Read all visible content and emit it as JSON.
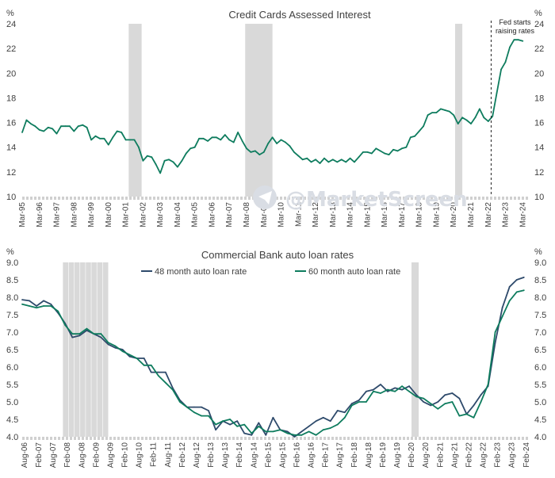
{
  "watermark": "@MarketScreen",
  "colors": {
    "series_a": "#2e4a6b",
    "series_b": "#0e7c5e",
    "recession": "#d9d9d9",
    "text": "#404040"
  },
  "chart_data": [
    {
      "type": "line",
      "title": "Credit Cards Assessed Interest",
      "y_unit_left": "%",
      "y_unit_right": "%",
      "ylim": [
        10,
        24
      ],
      "yticks": [
        10,
        12,
        14,
        16,
        18,
        20,
        22,
        24
      ],
      "x_tick_labels": [
        "Mar-95",
        "Mar-96",
        "Mar-97",
        "Mar-98",
        "Mar-99",
        "Mar-00",
        "Mar-01",
        "Mar-02",
        "Mar-03",
        "Mar-04",
        "Mar-05",
        "Mar-06",
        "Mar-07",
        "Mar-08",
        "Mar-09",
        "Mar-10",
        "Mar-11",
        "Mar-12",
        "Mar-13",
        "Mar-14",
        "Mar-15",
        "Mar-16",
        "Mar-17",
        "Mar-18",
        "Mar-19",
        "Mar-20",
        "Mar-21",
        "Mar-22",
        "Mar-23",
        "Mar-24"
      ],
      "xlim": [
        1995.0,
        2024.4
      ],
      "recessions": [
        [
          2001.17,
          2001.92
        ],
        [
          2007.92,
          2009.5
        ],
        [
          2020.08,
          2020.5
        ]
      ],
      "annotation": {
        "text_lines": [
          "Fed starts",
          "raising rates"
        ],
        "x": 2022.17
      },
      "series": [
        {
          "x": [
            1995.0,
            1995.25,
            1995.5,
            1995.75,
            1996.0,
            1996.25,
            1996.5,
            1996.75,
            1997.0,
            1997.25,
            1997.5,
            1997.75,
            1998.0,
            1998.25,
            1998.5,
            1998.75,
            1999.0,
            1999.25,
            1999.5,
            1999.75,
            2000.0,
            2000.25,
            2000.5,
            2000.75,
            2001.0,
            2001.25,
            2001.5,
            2001.75,
            2002.0,
            2002.25,
            2002.5,
            2002.75,
            2003.0,
            2003.25,
            2003.5,
            2003.75,
            2004.0,
            2004.25,
            2004.5,
            2004.75,
            2005.0,
            2005.25,
            2005.5,
            2005.75,
            2006.0,
            2006.25,
            2006.5,
            2006.75,
            2007.0,
            2007.25,
            2007.5,
            2007.75,
            2008.0,
            2008.25,
            2008.5,
            2008.75,
            2009.0,
            2009.25,
            2009.5,
            2009.75,
            2010.0,
            2010.25,
            2010.5,
            2010.75,
            2011.0,
            2011.25,
            2011.5,
            2011.75,
            2012.0,
            2012.25,
            2012.5,
            2012.75,
            2013.0,
            2013.25,
            2013.5,
            2013.75,
            2014.0,
            2014.25,
            2014.5,
            2014.75,
            2015.0,
            2015.25,
            2015.5,
            2015.75,
            2016.0,
            2016.25,
            2016.5,
            2016.75,
            2017.0,
            2017.25,
            2017.5,
            2017.75,
            2018.0,
            2018.25,
            2018.5,
            2018.75,
            2019.0,
            2019.25,
            2019.5,
            2019.75,
            2020.0,
            2020.25,
            2020.5,
            2020.75,
            2021.0,
            2021.25,
            2021.5,
            2021.75,
            2022.0,
            2022.25,
            2022.5,
            2022.75,
            2023.0,
            2023.25,
            2023.5,
            2023.75,
            2024.0
          ],
          "values": [
            15.2,
            16.2,
            15.9,
            15.7,
            15.4,
            15.3,
            15.6,
            15.5,
            15.1,
            15.7,
            15.7,
            15.7,
            15.3,
            15.7,
            15.8,
            15.6,
            14.6,
            14.9,
            14.7,
            14.7,
            14.2,
            14.8,
            15.3,
            15.2,
            14.6,
            14.6,
            14.6,
            14.0,
            12.9,
            13.3,
            13.2,
            12.6,
            11.9,
            12.9,
            13.0,
            12.8,
            12.4,
            12.9,
            13.5,
            13.9,
            14.0,
            14.7,
            14.7,
            14.5,
            14.8,
            14.8,
            14.6,
            15.0,
            14.6,
            14.4,
            15.2,
            14.5,
            13.9,
            13.6,
            13.7,
            13.4,
            13.6,
            14.3,
            14.8,
            14.3,
            14.6,
            14.4,
            14.1,
            13.6,
            13.3,
            13.0,
            13.1,
            12.8,
            13.0,
            12.7,
            13.1,
            12.8,
            13.0,
            12.8,
            13.0,
            12.8,
            13.1,
            12.8,
            13.2,
            13.6,
            13.6,
            13.5,
            13.9,
            13.7,
            13.5,
            13.4,
            13.8,
            13.7,
            13.9,
            14.0,
            14.8,
            14.9,
            15.3,
            15.7,
            16.6,
            16.8,
            16.8,
            17.1,
            17.0,
            16.9,
            16.6,
            15.9,
            16.4,
            16.2,
            15.9,
            16.4,
            17.1,
            16.4,
            16.1,
            16.5,
            18.4,
            20.3,
            20.9,
            22.1,
            22.7,
            22.7,
            22.6
          ]
        }
      ]
    },
    {
      "type": "line",
      "title": "Commercial Bank auto loan rates",
      "y_unit_left": "%",
      "y_unit_right": "%",
      "ylim": [
        4.0,
        9.0
      ],
      "yticks": [
        4.0,
        4.5,
        5.0,
        5.5,
        6.0,
        6.5,
        7.0,
        7.5,
        8.0,
        8.5,
        9.0
      ],
      "x_tick_labels": [
        "Aug-06",
        "Feb-07",
        "Aug-07",
        "Feb-08",
        "Aug-08",
        "Feb-09",
        "Aug-09",
        "Feb-10",
        "Aug-10",
        "Feb-11",
        "Aug-11",
        "Feb-12",
        "Aug-12",
        "Feb-13",
        "Aug-13",
        "Feb-14",
        "Aug-14",
        "Feb-15",
        "Aug-15",
        "Feb-16",
        "Aug-16",
        "Feb-17",
        "Aug-17",
        "Feb-18",
        "Aug-18",
        "Feb-19",
        "Aug-19",
        "Feb-20",
        "Aug-20",
        "Feb-21",
        "Aug-21",
        "Feb-22",
        "Aug-22",
        "Feb-23",
        "Aug-23",
        "Feb-24"
      ],
      "xlim": [
        2006.5,
        2024.2
      ],
      "recessions": [
        [
          2007.92,
          2009.5
        ],
        [
          2020.08,
          2020.33
        ]
      ],
      "series": [
        {
          "name": "48 month auto loan rate",
          "color_key": "series_a",
          "x": [
            2006.5,
            2006.75,
            2007.0,
            2007.25,
            2007.5,
            2007.75,
            2008.0,
            2008.25,
            2008.5,
            2008.75,
            2009.0,
            2009.25,
            2009.5,
            2009.75,
            2010.0,
            2010.25,
            2010.5,
            2010.75,
            2011.0,
            2011.25,
            2011.5,
            2011.75,
            2012.0,
            2012.25,
            2012.5,
            2012.75,
            2013.0,
            2013.25,
            2013.5,
            2013.75,
            2014.0,
            2014.25,
            2014.5,
            2014.75,
            2015.0,
            2015.25,
            2015.5,
            2015.75,
            2016.0,
            2016.25,
            2016.5,
            2016.75,
            2017.0,
            2017.25,
            2017.5,
            2017.75,
            2018.0,
            2018.25,
            2018.5,
            2018.75,
            2019.0,
            2019.25,
            2019.5,
            2019.75,
            2020.0,
            2020.25,
            2020.5,
            2020.75,
            2021.0,
            2021.25,
            2021.5,
            2021.75,
            2022.0,
            2022.25,
            2022.5,
            2022.75,
            2023.0,
            2023.25,
            2023.5,
            2023.75,
            2024.0
          ],
          "values": [
            7.93,
            7.9,
            7.75,
            7.9,
            7.8,
            7.55,
            7.25,
            6.85,
            6.9,
            7.05,
            6.95,
            6.85,
            6.65,
            6.55,
            6.5,
            6.3,
            6.25,
            6.25,
            5.85,
            5.85,
            5.85,
            5.4,
            5.05,
            4.85,
            4.85,
            4.85,
            4.75,
            4.2,
            4.45,
            4.35,
            4.45,
            4.1,
            4.05,
            4.4,
            4.05,
            4.55,
            4.2,
            4.15,
            4.0,
            4.15,
            4.3,
            4.45,
            4.55,
            4.45,
            4.75,
            4.7,
            4.95,
            5.05,
            5.3,
            5.35,
            5.5,
            5.3,
            5.4,
            5.35,
            5.45,
            5.2,
            5.0,
            4.9,
            5.0,
            5.2,
            5.25,
            5.1,
            4.65,
            4.9,
            5.2,
            5.45,
            6.7,
            7.7,
            8.3,
            8.5,
            8.57
          ]
        },
        {
          "name": "60 month auto loan rate",
          "color_key": "series_b",
          "x": [
            2006.5,
            2006.75,
            2007.0,
            2007.25,
            2007.5,
            2007.75,
            2008.0,
            2008.25,
            2008.5,
            2008.75,
            2009.0,
            2009.25,
            2009.5,
            2009.75,
            2010.0,
            2010.25,
            2010.5,
            2010.75,
            2011.0,
            2011.25,
            2011.5,
            2011.75,
            2012.0,
            2012.25,
            2012.5,
            2012.75,
            2013.0,
            2013.25,
            2013.5,
            2013.75,
            2014.0,
            2014.25,
            2014.5,
            2014.75,
            2015.0,
            2015.25,
            2015.5,
            2015.75,
            2016.0,
            2016.25,
            2016.5,
            2016.75,
            2017.0,
            2017.25,
            2017.5,
            2017.75,
            2018.0,
            2018.25,
            2018.5,
            2018.75,
            2019.0,
            2019.25,
            2019.5,
            2019.75,
            2020.0,
            2020.25,
            2020.5,
            2020.75,
            2021.0,
            2021.25,
            2021.5,
            2021.75,
            2022.0,
            2022.25,
            2022.5,
            2022.75,
            2023.0,
            2023.25,
            2023.5,
            2023.75,
            2024.0
          ],
          "values": [
            7.8,
            7.75,
            7.7,
            7.75,
            7.75,
            7.6,
            7.2,
            6.95,
            6.95,
            7.1,
            6.95,
            6.95,
            6.7,
            6.6,
            6.45,
            6.35,
            6.25,
            6.05,
            6.05,
            5.75,
            5.55,
            5.35,
            5.0,
            4.85,
            4.7,
            4.6,
            4.6,
            4.35,
            4.45,
            4.5,
            4.3,
            4.35,
            4.1,
            4.3,
            4.15,
            4.15,
            4.2,
            4.1,
            4.05,
            4.05,
            4.15,
            4.05,
            4.2,
            4.25,
            4.35,
            4.55,
            4.9,
            5.0,
            5.0,
            5.3,
            5.25,
            5.35,
            5.3,
            5.45,
            5.3,
            5.15,
            5.1,
            4.95,
            4.8,
            4.95,
            5.0,
            4.6,
            4.65,
            4.55,
            5.0,
            5.5,
            7.0,
            7.45,
            7.9,
            8.15,
            8.2
          ]
        }
      ]
    }
  ]
}
